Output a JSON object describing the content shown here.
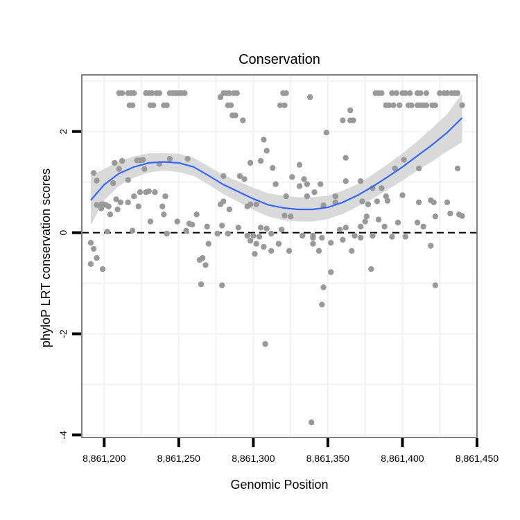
{
  "chart_data": {
    "type": "scatter",
    "title": "Conservation",
    "xlabel": "Genomic Position",
    "ylabel": "phyloP LRT conservation scores",
    "xlim": [
      8861185,
      8861450
    ],
    "ylim": [
      -4.05,
      3.12
    ],
    "x_ticks": [
      8861200,
      8861250,
      8861300,
      8861350,
      8861400,
      8861450
    ],
    "x_tick_labels": [
      "8,861,200",
      "8,861,250",
      "8,861,300",
      "8,861,350",
      "8,861,400",
      "8,861,450"
    ],
    "y_ticks": [
      -4,
      -2,
      0,
      2
    ],
    "y_tick_labels": [
      "-4",
      "-2",
      "0",
      "2"
    ],
    "reference_line": {
      "y": 0,
      "style": "dashed"
    },
    "grid": true,
    "colors": {
      "points": "#999999",
      "smooth_line": "#3366ff",
      "confidence_band": "#d9d9d9",
      "grid": "#f2f2f2",
      "panel_border": "#7f7f7f",
      "reference_line": "#000000"
    },
    "points": [
      [
        8861210,
        2.76
      ],
      [
        8861212,
        2.76
      ],
      [
        8861216,
        2.76
      ],
      [
        8861218,
        2.76
      ],
      [
        8861220,
        2.76
      ],
      [
        8861228,
        2.76
      ],
      [
        8861230,
        2.76
      ],
      [
        8861232,
        2.76
      ],
      [
        8861235,
        2.76
      ],
      [
        8861237,
        2.76
      ],
      [
        8861244,
        2.76
      ],
      [
        8861246,
        2.76
      ],
      [
        8861248,
        2.76
      ],
      [
        8861250,
        2.76
      ],
      [
        8861252,
        2.76
      ],
      [
        8861254,
        2.76
      ],
      [
        8861280,
        2.76
      ],
      [
        8861282,
        2.76
      ],
      [
        8861284,
        2.76
      ],
      [
        8861287,
        2.76
      ],
      [
        8861289,
        2.76
      ],
      [
        8861320,
        2.76
      ],
      [
        8861322,
        2.76
      ],
      [
        8861382,
        2.76
      ],
      [
        8861384,
        2.76
      ],
      [
        8861386,
        2.76
      ],
      [
        8861393,
        2.76
      ],
      [
        8861396,
        2.76
      ],
      [
        8861400,
        2.76
      ],
      [
        8861402,
        2.76
      ],
      [
        8861405,
        2.76
      ],
      [
        8861410,
        2.76
      ],
      [
        8861412,
        2.76
      ],
      [
        8861416,
        2.76
      ],
      [
        8861425,
        2.76
      ],
      [
        8861428,
        2.76
      ],
      [
        8861430,
        2.76
      ],
      [
        8861433,
        2.76
      ],
      [
        8861435,
        2.76
      ],
      [
        8861437,
        2.76
      ],
      [
        8861278,
        2.68
      ],
      [
        8861338,
        2.68
      ],
      [
        8861217,
        2.52
      ],
      [
        8861219,
        2.52
      ],
      [
        8861231,
        2.52
      ],
      [
        8861233,
        2.52
      ],
      [
        8861240,
        2.52
      ],
      [
        8861242,
        2.52
      ],
      [
        8861283,
        2.52
      ],
      [
        8861285,
        2.52
      ],
      [
        8861318,
        2.52
      ],
      [
        8861321,
        2.52
      ],
      [
        8861389,
        2.52
      ],
      [
        8861391,
        2.52
      ],
      [
        8861394,
        2.52
      ],
      [
        8861398,
        2.52
      ],
      [
        8861404,
        2.52
      ],
      [
        8861406,
        2.52
      ],
      [
        8861410,
        2.52
      ],
      [
        8861412,
        2.52
      ],
      [
        8861414,
        2.52
      ],
      [
        8861416,
        2.52
      ],
      [
        8861420,
        2.52
      ],
      [
        8861422,
        2.52
      ],
      [
        8861440,
        2.52
      ],
      [
        8861365,
        2.42
      ],
      [
        8861286,
        2.32
      ],
      [
        8861288,
        2.32
      ],
      [
        8861365,
        2.22
      ],
      [
        8861367,
        2.22
      ],
      [
        8861360,
        2.22
      ],
      [
        8861293,
        2.22
      ],
      [
        8861349,
        1.98
      ],
      [
        8861307,
        1.84
      ],
      [
        8861309,
        1.62
      ],
      [
        8861362,
        1.48
      ],
      [
        8861244,
        1.46
      ],
      [
        8861256,
        1.46
      ],
      [
        8861226,
        1.44
      ],
      [
        8861222,
        1.43
      ],
      [
        8861224,
        1.43
      ],
      [
        8861212,
        1.42
      ],
      [
        8861207,
        1.38
      ],
      [
        8861237,
        1.36
      ],
      [
        8861331,
        1.34
      ],
      [
        8861298,
        1.38
      ],
      [
        8861305,
        1.42
      ],
      [
        8861401,
        1.44
      ],
      [
        8861395,
        1.27
      ],
      [
        8861411,
        1.27
      ],
      [
        8861437,
        1.27
      ],
      [
        8861193,
        1.18
      ],
      [
        8861227,
        1.26
      ],
      [
        8861210,
        1.26
      ],
      [
        8861313,
        1.28
      ],
      [
        8861291,
        1.12
      ],
      [
        8861294,
        1.06
      ],
      [
        8861280,
        1.12
      ],
      [
        8861326,
        1.1
      ],
      [
        8861334,
        1.06
      ],
      [
        8861195,
        1.03
      ],
      [
        8861206,
        0.98
      ],
      [
        8861216,
        1.04
      ],
      [
        8861315,
        0.96
      ],
      [
        8861336,
        0.96
      ],
      [
        8861345,
        0.96
      ],
      [
        8861362,
        1.02
      ],
      [
        8861372,
        1.02
      ],
      [
        8861386,
        0.88
      ],
      [
        8861380,
        0.88
      ],
      [
        8861331,
        0.92
      ],
      [
        8861224,
        0.8
      ],
      [
        8861228,
        0.8
      ],
      [
        8861234,
        0.8
      ],
      [
        8861220,
        0.72
      ],
      [
        8861241,
        0.72
      ],
      [
        8861230,
        0.82
      ],
      [
        8861400,
        0.74
      ],
      [
        8861389,
        0.72
      ],
      [
        8861322,
        0.72
      ],
      [
        8861336,
        0.72
      ],
      [
        8861355,
        0.72
      ],
      [
        8861341,
        0.8
      ],
      [
        8861208,
        0.66
      ],
      [
        8861216,
        0.6
      ],
      [
        8861211,
        0.6
      ],
      [
        8861199,
        0.56
      ],
      [
        8861198,
        0.56
      ],
      [
        8861195,
        0.55
      ],
      [
        8861201,
        0.55
      ],
      [
        8861203,
        0.52
      ],
      [
        8861198,
        0.48
      ],
      [
        8861280,
        0.62
      ],
      [
        8861278,
        0.56
      ],
      [
        8861284,
        0.46
      ],
      [
        8861296,
        0.52
      ],
      [
        8861298,
        0.56
      ],
      [
        8861302,
        0.56
      ],
      [
        8861347,
        0.54
      ],
      [
        8861355,
        0.6
      ],
      [
        8861373,
        0.62
      ],
      [
        8861377,
        0.56
      ],
      [
        8861383,
        0.62
      ],
      [
        8861390,
        0.63
      ],
      [
        8861411,
        0.6
      ],
      [
        8861419,
        0.64
      ],
      [
        8861421,
        0.6
      ],
      [
        8861430,
        0.6
      ],
      [
        8861438,
        0.36
      ],
      [
        8861440,
        0.33
      ],
      [
        8861209,
        0.46
      ],
      [
        8861223,
        0.52
      ],
      [
        8861239,
        0.52
      ],
      [
        8861204,
        0.36
      ],
      [
        8861240,
        0.36
      ],
      [
        8861262,
        0.36
      ],
      [
        8861321,
        0.34
      ],
      [
        8861325,
        0.32
      ],
      [
        8861376,
        0.32
      ],
      [
        8861375,
        0.22
      ],
      [
        8861384,
        0.26
      ],
      [
        8861432,
        0.38
      ],
      [
        8861422,
        0.32
      ],
      [
        8861249,
        0.22
      ],
      [
        8861231,
        0.22
      ],
      [
        8861257,
        0.18
      ],
      [
        8861259,
        0.16
      ],
      [
        8861269,
        0.12
      ],
      [
        8861279,
        0.14
      ],
      [
        8861290,
        0.1
      ],
      [
        8861305,
        0.1
      ],
      [
        8861309,
        0.08
      ],
      [
        8861319,
        0.06
      ],
      [
        8861358,
        0.06
      ],
      [
        8861362,
        0.1
      ],
      [
        8861372,
        0.12
      ],
      [
        8861388,
        0.12
      ],
      [
        8861397,
        0.2
      ],
      [
        8861410,
        0.2
      ],
      [
        8861414,
        0.12
      ],
      [
        8861202,
        0.02
      ],
      [
        8861219,
        0.04
      ],
      [
        8861255,
        0.04
      ],
      [
        8861242,
        -0.02
      ],
      [
        8861276,
        -0.02
      ],
      [
        8861283,
        -0.02
      ],
      [
        8861296,
        -0.06
      ],
      [
        8861300,
        -0.06
      ],
      [
        8861304,
        -0.08
      ],
      [
        8861312,
        -0.02
      ],
      [
        8861333,
        -0.06
      ],
      [
        8861340,
        -0.06
      ],
      [
        8861346,
        -0.1
      ],
      [
        8861368,
        -0.06
      ],
      [
        8861372,
        -0.1
      ],
      [
        8861380,
        -0.06
      ],
      [
        8861393,
        -0.08
      ],
      [
        8861402,
        -0.08
      ],
      [
        8861191,
        -0.2
      ],
      [
        8861193,
        -0.32
      ],
      [
        8861195,
        -0.5
      ],
      [
        8861191,
        -0.62
      ],
      [
        8861199,
        -0.72
      ],
      [
        8861270,
        -0.22
      ],
      [
        8861298,
        -0.16
      ],
      [
        8861302,
        -0.22
      ],
      [
        8861307,
        -0.28
      ],
      [
        8861312,
        -0.36
      ],
      [
        8861317,
        -0.22
      ],
      [
        8861324,
        -0.36
      ],
      [
        8861340,
        -0.22
      ],
      [
        8861344,
        -0.36
      ],
      [
        8861352,
        -0.2
      ],
      [
        8861360,
        -0.14
      ],
      [
        8861366,
        -0.36
      ],
      [
        8861419,
        -0.26
      ],
      [
        8861340,
        -0.1
      ],
      [
        8861301,
        -0.42
      ],
      [
        8861264,
        -0.54
      ],
      [
        8861266,
        -0.5
      ],
      [
        8861268,
        -0.64
      ],
      [
        8861379,
        -0.72
      ],
      [
        8861352,
        -0.78
      ],
      [
        8861265,
        -1.02
      ],
      [
        8861279,
        -1.04
      ],
      [
        8861347,
        -1.08
      ],
      [
        8861422,
        -1.04
      ],
      [
        8861346,
        -1.42
      ],
      [
        8861308,
        -2.2
      ],
      [
        8861339,
        -3.75
      ]
    ],
    "smooth": {
      "x": [
        8861191,
        8861200,
        8861210,
        8861220,
        8861230,
        8861240,
        8861250,
        8861260,
        8861270,
        8861280,
        8861290,
        8861300,
        8861310,
        8861320,
        8861330,
        8861340,
        8861350,
        8861360,
        8861370,
        8861380,
        8861390,
        8861400,
        8861410,
        8861420,
        8861430,
        8861440
      ],
      "y": [
        0.64,
        0.95,
        1.17,
        1.3,
        1.38,
        1.4,
        1.38,
        1.3,
        1.13,
        0.95,
        0.81,
        0.67,
        0.55,
        0.49,
        0.46,
        0.46,
        0.5,
        0.6,
        0.74,
        0.91,
        1.1,
        1.3,
        1.52,
        1.74,
        1.98,
        2.27
      ],
      "lower": [
        0.15,
        0.64,
        0.93,
        1.09,
        1.19,
        1.23,
        1.2,
        1.12,
        0.95,
        0.76,
        0.61,
        0.45,
        0.32,
        0.25,
        0.22,
        0.22,
        0.27,
        0.37,
        0.52,
        0.67,
        0.85,
        1.03,
        1.23,
        1.41,
        1.61,
        1.79
      ],
      "upper": [
        1.13,
        1.26,
        1.41,
        1.51,
        1.57,
        1.57,
        1.56,
        1.48,
        1.31,
        1.14,
        1.01,
        0.89,
        0.78,
        0.73,
        0.7,
        0.7,
        0.73,
        0.83,
        0.96,
        1.15,
        1.35,
        1.57,
        1.81,
        2.07,
        2.35,
        2.75
      ]
    }
  }
}
